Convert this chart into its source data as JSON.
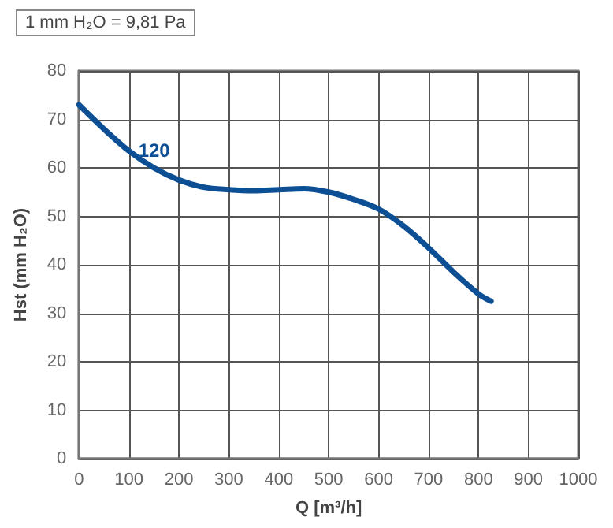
{
  "chart_data": {
    "type": "line",
    "xlabel": "Q [m³/h]",
    "ylabel": "Hst (mm H₂O)",
    "annotations": [
      "1 mm H₂O = 9,81 Pa"
    ],
    "xlim": [
      0,
      1000
    ],
    "xticks": [
      0,
      100,
      200,
      300,
      400,
      500,
      600,
      700,
      800,
      900,
      1000
    ],
    "ylim": [
      0,
      80
    ],
    "yticks": [
      0,
      10,
      20,
      30,
      40,
      50,
      60,
      70,
      80
    ],
    "grid": true,
    "marker": "none",
    "line_style": "solid",
    "series": [
      {
        "name": "120",
        "color": "#0d4f94",
        "x": [
          0,
          50,
          100,
          150,
          200,
          250,
          300,
          350,
          400,
          450,
          500,
          550,
          600,
          650,
          700,
          750,
          800,
          825
        ],
        "values": [
          73,
          68,
          63.5,
          60,
          57.5,
          56,
          55.5,
          55.3,
          55.5,
          55.7,
          55,
          53.5,
          51.5,
          48,
          43.5,
          38.5,
          34,
          32.5
        ]
      }
    ]
  }
}
